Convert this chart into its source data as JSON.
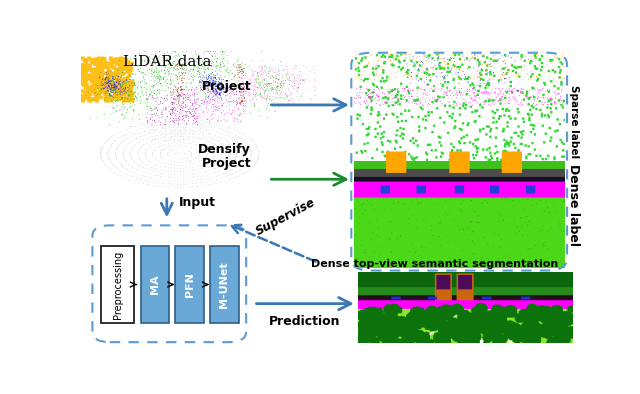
{
  "fig_width": 6.4,
  "fig_height": 3.94,
  "dpi": 100,
  "bg_color": "#ffffff",
  "lidar_title": "LiDAR data",
  "dense_seg_title": "Dense top-view semantic segmentation",
  "sparse_label_text": "Sparse label",
  "dense_label_text": "Dense label",
  "block_facecolor": "#6aa8d8",
  "block_edgecolor": "#2c5f8a",
  "pipeline_box_color": "#5b9bd5",
  "right_box_color": "#5b9bd5"
}
